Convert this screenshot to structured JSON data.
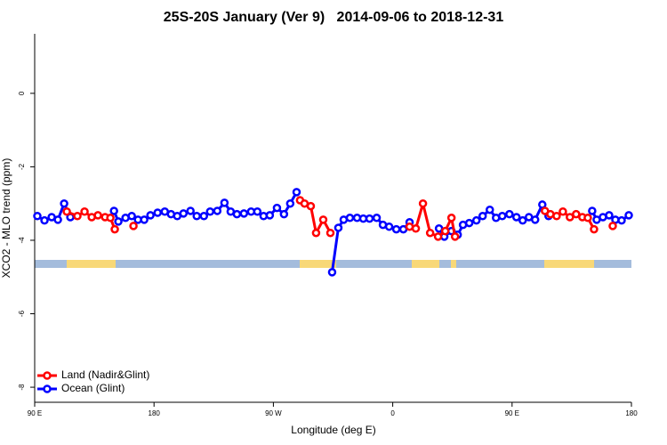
{
  "chart_data": {
    "type": "line",
    "title": "25S-20S January (Ver 9)   2014-09-06 to 2018-12-31",
    "x_label": "Longitude (deg E)",
    "y_label": "XCO2 - MLO trend (ppm)",
    "xlim": [
      90,
      540
    ],
    "xticks": [
      {
        "value": 90,
        "label": "90 E"
      },
      {
        "value": 180,
        "label": "180"
      },
      {
        "value": 270,
        "label": "90 W"
      },
      {
        "value": 360,
        "label": "0"
      },
      {
        "value": 450,
        "label": "90 E"
      },
      {
        "value": 540,
        "label": "180"
      }
    ],
    "ylim": [
      -8.41,
      1.62
    ],
    "yticks": [
      -8,
      -6,
      -4,
      -2,
      0
    ],
    "legend": "bottom-left",
    "series": [
      {
        "name": "Land (Nadir&Glint)",
        "color": "#ff0000",
        "x": [
          114.2,
          122.2,
          127.6,
          133.0,
          137.7,
          143.1,
          147.1,
          150.4,
          null,
          164.5,
          null,
          290.1,
          293.5,
          298.2,
          302.2,
          307.6,
          313.0,
          null,
          372.7,
          377.4,
          382.8,
          388.2,
          394.2,
          399.6,
          404.3,
          407.0,
          null,
          474.8,
          478.9,
          483.6,
          488.3,
          493.6,
          498.3,
          503.0,
          507.1,
          511.8,
          null,
          525.9
        ],
        "values": [
          -3.22,
          -3.34,
          -3.22,
          -3.37,
          -3.32,
          -3.37,
          -3.39,
          -3.7,
          null,
          -3.61,
          null,
          -2.91,
          -3.0,
          -3.07,
          -3.8,
          -3.44,
          -3.8,
          null,
          -3.63,
          -3.68,
          -3.0,
          -3.8,
          -3.9,
          -3.75,
          -3.39,
          -3.9,
          null,
          -3.2,
          -3.29,
          -3.34,
          -3.22,
          -3.37,
          -3.29,
          -3.37,
          -3.39,
          -3.7,
          null,
          -3.61
        ]
      },
      {
        "name": "Ocean (Glint)",
        "color": "#0000ff",
        "x": [
          92.0,
          97.4,
          102.8,
          107.5,
          112.2,
          116.9,
          null,
          149.8,
          153.1,
          158.5,
          163.2,
          167.9,
          172.6,
          177.3,
          182.7,
          188.1,
          192.8,
          197.5,
          202.2,
          207.5,
          212.2,
          217.6,
          222.3,
          227.7,
          233.1,
          237.8,
          242.5,
          247.8,
          253.2,
          257.9,
          262.6,
          267.3,
          272.7,
          278.0,
          282.7,
          287.5,
          null,
          314.3,
          319.0,
          323.0,
          327.7,
          333.1,
          337.8,
          342.5,
          347.9,
          352.6,
          357.3,
          362.7,
          368.0,
          372.7,
          null,
          394.9,
          398.9,
          404.3,
          409.0,
          413.0,
          417.7,
          423.1,
          427.8,
          433.2,
          437.9,
          442.6,
          448.0,
          453.3,
          458.0,
          462.7,
          467.4,
          472.8,
          477.5,
          null,
          510.4,
          513.8,
          518.5,
          523.2,
          527.9,
          532.6,
          538.0
        ],
        "values": [
          -3.34,
          -3.46,
          -3.37,
          -3.44,
          -3.0,
          -3.37,
          null,
          -3.2,
          -3.49,
          -3.39,
          -3.34,
          -3.44,
          -3.44,
          -3.32,
          -3.25,
          -3.22,
          -3.29,
          -3.34,
          -3.27,
          -3.2,
          -3.34,
          -3.34,
          -3.22,
          -3.2,
          -2.98,
          -3.22,
          -3.29,
          -3.27,
          -3.22,
          -3.22,
          -3.34,
          -3.32,
          -3.12,
          -3.29,
          -3.0,
          -2.69,
          null,
          -4.87,
          -3.66,
          -3.44,
          -3.39,
          -3.39,
          -3.41,
          -3.41,
          -3.39,
          -3.58,
          -3.63,
          -3.7,
          -3.7,
          -3.51,
          null,
          -3.68,
          -3.9,
          -3.75,
          -3.85,
          -3.58,
          -3.53,
          -3.46,
          -3.34,
          -3.17,
          -3.39,
          -3.34,
          -3.29,
          -3.37,
          -3.46,
          -3.37,
          -3.44,
          -3.03,
          -3.34,
          null,
          -3.2,
          -3.44,
          -3.37,
          -3.32,
          -3.44,
          -3.46,
          -3.32
        ]
      }
    ]
  }
}
